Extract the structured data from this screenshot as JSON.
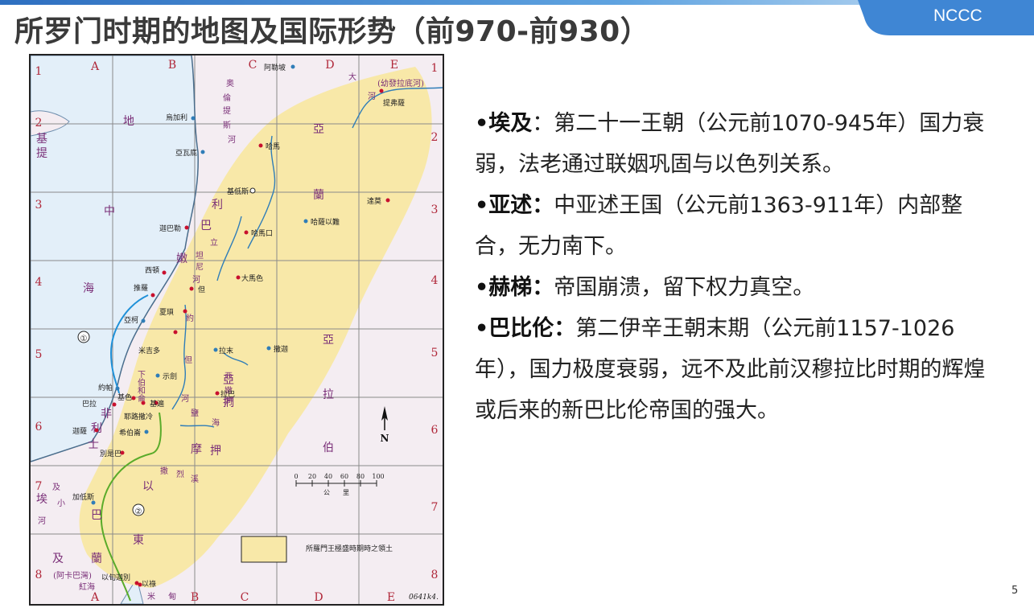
{
  "slide": {
    "title": "所罗门时期的地图及国际形势（前970-前930）",
    "badge": "NCCC",
    "page_number": "5"
  },
  "bullets": [
    {
      "lead": "•埃及",
      "sep": "：",
      "text": "第二十一王朝（公元前1070-945年）国力衰弱，法老通过联姻巩固与以色列关系。"
    },
    {
      "lead": "•亚述：",
      "sep": "",
      "text": "中亚述王国（公元前1363-911年）内部整合，无力南下。"
    },
    {
      "lead": "•赫梯：",
      "sep": "",
      "text": "帝国崩溃，留下权力真空。"
    },
    {
      "lead": "•巴比伦：",
      "sep": "",
      "text": "第二伊辛王朝末期（公元前1157-1026年），国力极度衰弱，远不及此前汉穆拉比时期的辉煌或后来的新巴比伦帝国的强大。"
    }
  ],
  "map": {
    "columns": [
      "A",
      "B",
      "C",
      "D",
      "E"
    ],
    "rows": [
      "1",
      "2",
      "3",
      "4",
      "5",
      "6",
      "7",
      "8"
    ],
    "regions": {
      "mediterranean": [
        "地",
        "中",
        "海"
      ],
      "cyprus": [
        "基",
        "提"
      ],
      "aram": [
        "亞",
        "蘭"
      ],
      "arabia": [
        "亞",
        "拉",
        "伯"
      ],
      "lebanon": [
        "利",
        "巴",
        "嫩"
      ],
      "edom": [
        "以",
        "東"
      ],
      "negeb": [
        "巴",
        "蘭"
      ],
      "philistia": [
        "非",
        "利",
        "士"
      ],
      "egypt": [
        "埃",
        "及"
      ],
      "brook_of_egypt": [
        "及",
        "小",
        "河"
      ],
      "euphrates": [
        "大",
        "河",
        "(幼發拉底河)"
      ],
      "orontes": [
        "奥",
        "倫",
        "提",
        "斯",
        "河"
      ],
      "litani": [
        "立",
        "坦",
        "尼",
        "河"
      ],
      "jordan": [
        "約",
        "但",
        "河"
      ],
      "arnon": [
        "亞",
        "嫩",
        "河"
      ],
      "ammon": [
        "亞",
        "捫"
      ],
      "moab": [
        "摩",
        "押"
      ],
      "zered": [
        "撒",
        "烈",
        "溪"
      ],
      "dead_sea": [
        "鹽",
        "海"
      ],
      "red_sea": [
        "(阿卡巴灣)",
        "紅海"
      ],
      "midian": [
        "米",
        "甸"
      ],
      "hebron_label": [
        "下",
        "伯",
        "和",
        "侖"
      ]
    },
    "cities": [
      "阿勒坡",
      "提弗薩",
      "烏加利",
      "亞瓦底",
      "哈馬",
      "基低斯",
      "達莫",
      "哈薩以難",
      "迦巴勒",
      "哈馬口",
      "西頓",
      "推羅",
      "大馬色",
      "但",
      "夏瑣",
      "亞柯",
      "米吉多",
      "拉末",
      "撒迦",
      "示劍",
      "約帕",
      "基色",
      "巴拉",
      "耶路撒冷",
      "基遍",
      "拉巴",
      "迦薩",
      "希伯崙",
      "別是巴",
      "加低斯",
      "以旬迦別",
      "以祿"
    ],
    "route_labels": [
      "①",
      "②"
    ],
    "north_label": "N",
    "scale_ticks": [
      "0",
      "20",
      "40",
      "60",
      "80",
      "100"
    ],
    "scale_unit": "公　　里",
    "legend_label": "所羅門王極盛時期時之領土",
    "code": "0641k4."
  },
  "colors": {
    "sea": "#e3eff9",
    "land": "#f4edf2",
    "kingdom": "#f8e8a8",
    "river": "#2f7db8",
    "city": "#c8102e",
    "route1": "#1e90d8",
    "route2": "#5aab2a",
    "label": "#7a2f78"
  }
}
